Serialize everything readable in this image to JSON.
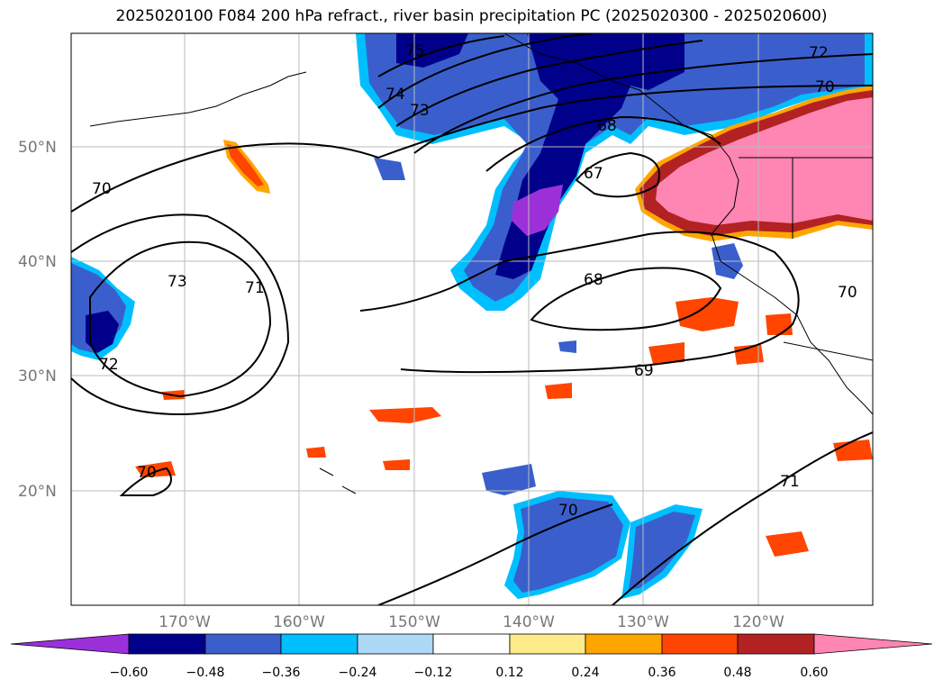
{
  "title": "2025020100 F084 200 hPa refract., river basin precipitation PC (2025020300 - 2025020600)",
  "lat_labels": [
    "50°N",
    "40°N",
    "30°N",
    "20°N"
  ],
  "lon_labels": [
    "170°W",
    "160°W",
    "150°W",
    "140°W",
    "130°W",
    "120°W"
  ],
  "contour_labels": [
    "75",
    "74",
    "73",
    "72",
    "70",
    "68",
    "67",
    "70",
    "73",
    "71",
    "72",
    "68",
    "69",
    "71",
    "70",
    "70",
    "70"
  ],
  "colorbar": {
    "ticks": [
      "−0.60",
      "−0.48",
      "−0.36",
      "−0.24",
      "−0.12",
      "0.12",
      "0.24",
      "0.36",
      "0.48",
      "0.60"
    ],
    "colors": [
      "#9b30d9",
      "#00008b",
      "#3a5fcd",
      "#00bfff",
      "#add8f7",
      "#ffffff",
      "#ffeb8a",
      "#ffa500",
      "#ff4500",
      "#b22222",
      "#ff85b3"
    ]
  },
  "colors": {
    "purple": "#9b30d9",
    "navy": "#00008b",
    "blue": "#3a5fcd",
    "cyan": "#00bfff",
    "lightblue": "#add8f7",
    "yellow": "#ffeb8a",
    "orange": "#ffa500",
    "redorange": "#ff4500",
    "darkred": "#b22222",
    "pink": "#ff85b3",
    "grid": "#bbbbbb",
    "axis_label": "#777777"
  }
}
